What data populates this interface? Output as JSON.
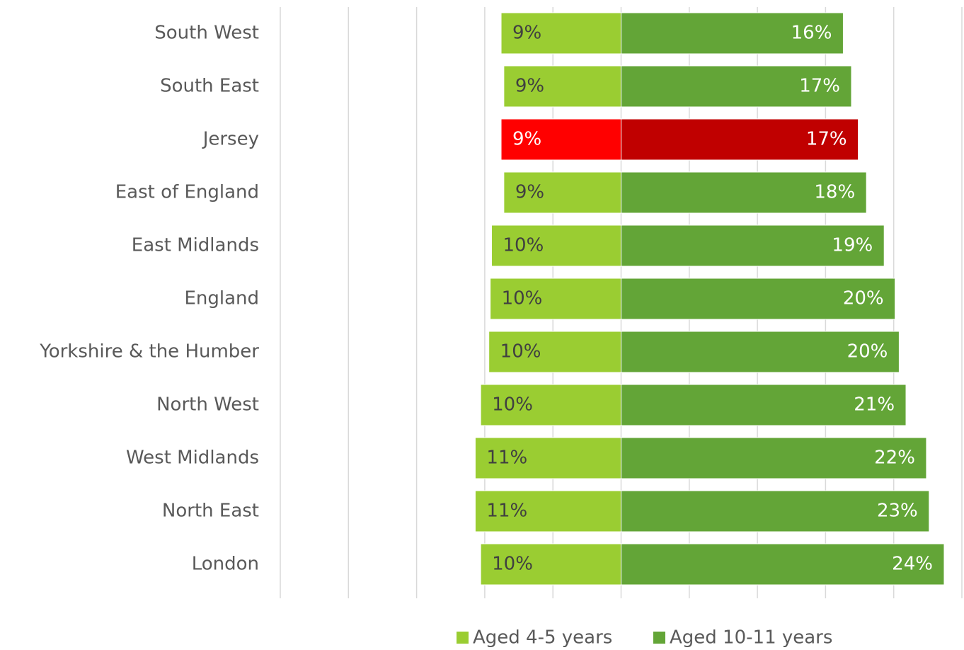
{
  "chart_data": {
    "type": "diverging-bar",
    "categories": [
      "South West",
      "South East",
      "Jersey",
      "East of England",
      "East Midlands",
      "England",
      "Yorkshire  & the Humber",
      "North West",
      "West Midlands",
      "North East",
      "London"
    ],
    "series": [
      {
        "name": "Aged 4-5 years",
        "color": "#9acd32",
        "colors": [
          "#9acd32",
          "#9acd32",
          "#ff0000",
          "#9acd32",
          "#9acd32",
          "#9acd32",
          "#9acd32",
          "#9acd32",
          "#9acd32",
          "#9acd32",
          "#9acd32"
        ],
        "values": [
          8.8,
          8.6,
          8.8,
          8.6,
          9.5,
          9.6,
          9.7,
          10.3,
          10.7,
          10.7,
          10.3
        ],
        "value_labels": [
          "9%",
          "9%",
          "9%",
          "9%",
          "10%",
          "10%",
          "10%",
          "10%",
          "11%",
          "11%",
          "10%"
        ]
      },
      {
        "name": "Aged 10-11 years",
        "color": "#63a537",
        "colors": [
          "#63a537",
          "#63a537",
          "#c00000",
          "#63a537",
          "#63a537",
          "#63a537",
          "#63a537",
          "#63a537",
          "#63a537",
          "#63a537",
          "#63a537"
        ],
        "values": [
          16.3,
          16.9,
          17.4,
          18.0,
          19.3,
          20.1,
          20.4,
          20.9,
          22.4,
          22.6,
          23.7
        ],
        "value_labels": [
          "16%",
          "17%",
          "17%",
          "18%",
          "19%",
          "20%",
          "20%",
          "21%",
          "22%",
          "23%",
          "24%"
        ]
      }
    ],
    "xlim": [
      -25,
      25
    ],
    "xticks": [
      -25,
      -20,
      -15,
      -10,
      -5,
      0,
      5,
      10,
      15,
      20,
      25
    ],
    "grid": true,
    "legend": "bottom"
  }
}
